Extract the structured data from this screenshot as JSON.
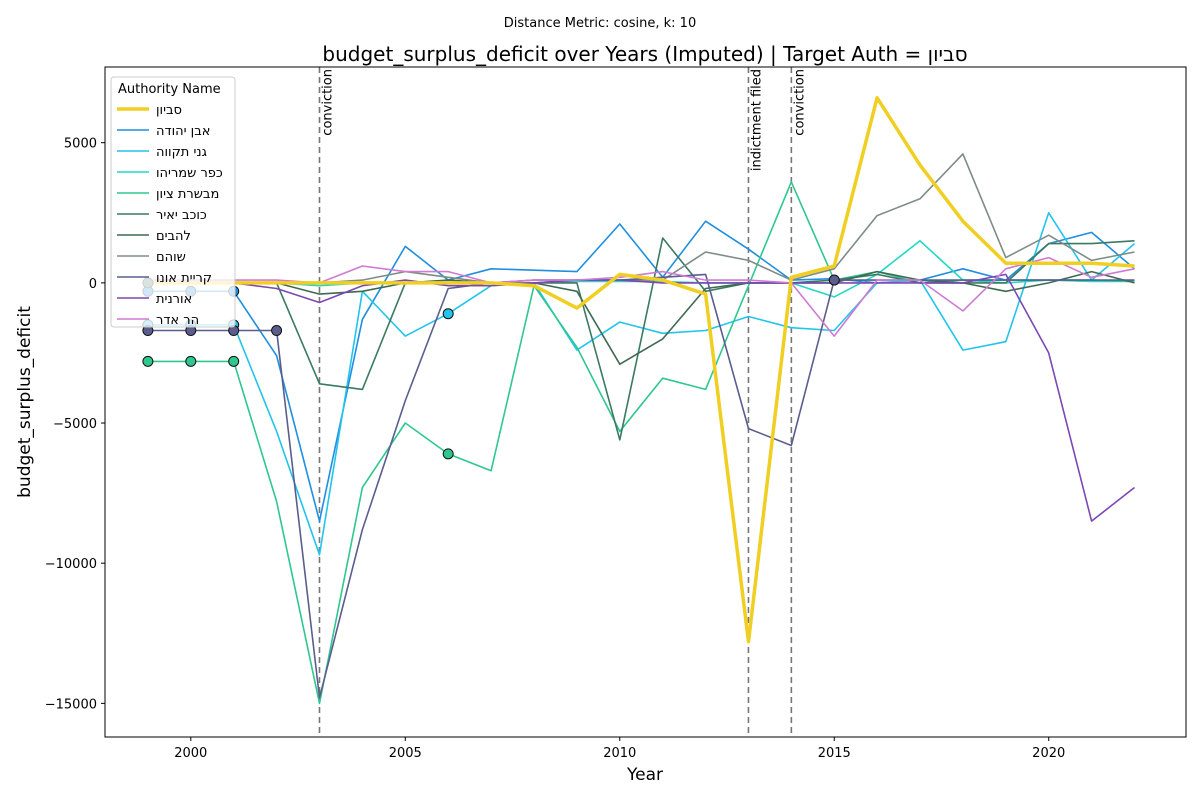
{
  "chart_data": {
    "type": "line",
    "suptitle": "Distance Metric: cosine, k: 10",
    "title": "budget_surplus_deficit over Years (Imputed) | Target Auth = סביון",
    "xlabel": "Year",
    "ylabel": "budget_surplus_deficit",
    "xlim": [
      1998,
      2023.2
    ],
    "ylim": [
      -16200,
      7700
    ],
    "xticks": [
      2000,
      2005,
      2010,
      2015,
      2020
    ],
    "xtick_labels": [
      "2000",
      "2005",
      "2010",
      "2015",
      "2020"
    ],
    "yticks": [
      -15000,
      -10000,
      -5000,
      0,
      5000
    ],
    "ytick_labels": [
      "−15000",
      "−10000",
      "−5000",
      "0",
      "5000"
    ],
    "grid": false,
    "legend": {
      "title": "Authority Name",
      "placement": "top-left"
    },
    "x": [
      1999,
      2000,
      2001,
      2002,
      2003,
      2004,
      2005,
      2006,
      2007,
      2008,
      2009,
      2010,
      2011,
      2012,
      2013,
      2014,
      2015,
      2016,
      2017,
      2018,
      2019,
      2020,
      2021,
      2022
    ],
    "events": [
      {
        "year": 2003,
        "label": "conviction"
      },
      {
        "year": 2013,
        "label": "indictment filed"
      },
      {
        "year": 2014,
        "label": "conviction"
      }
    ],
    "series": [
      {
        "name": "סביון",
        "color": "#f0cf22",
        "target": true,
        "values": [
          0,
          0,
          0,
          0,
          0,
          0,
          0,
          0,
          0,
          -100,
          -900,
          300,
          100,
          -400,
          -12800,
          200,
          600,
          6600,
          4200,
          2200,
          700,
          700,
          700,
          600
        ],
        "imputed_years": []
      },
      {
        "name": "אבן יהודה",
        "color": "#1f8ee0",
        "target": false,
        "values": [
          -300,
          -300,
          -300,
          -2600,
          -8500,
          -1300,
          1300,
          100,
          500,
          450,
          400,
          2100,
          200,
          2200,
          1200,
          100,
          150,
          0,
          100,
          500,
          100,
          1400,
          1800,
          500
        ],
        "imputed_years": [
          1999,
          2000,
          2001
        ]
      },
      {
        "name": "גני תקווה",
        "color": "#22c4ec",
        "target": false,
        "values": [
          -1500,
          -1500,
          -1500,
          -5300,
          -9700,
          -300,
          -1900,
          -1100,
          -100,
          0,
          -2400,
          -1400,
          -1800,
          -1700,
          -1200,
          -1600,
          -1700,
          0,
          100,
          -2400,
          -2100,
          2500,
          100,
          1400
        ],
        "imputed_years": [
          1999,
          2000,
          2001,
          2006
        ]
      },
      {
        "name": "כפר שמריהו",
        "color": "#22d8c4",
        "target": false,
        "values": [
          0,
          0,
          0,
          0,
          -100,
          0,
          0,
          0,
          0,
          0,
          50,
          50,
          50,
          0,
          0,
          0,
          -500,
          300,
          1500,
          100,
          0,
          100,
          50,
          50
        ],
        "imputed_years": []
      },
      {
        "name": "מבשרת ציון",
        "color": "#2ec88e",
        "target": false,
        "values": [
          -2800,
          -2800,
          -2800,
          -7800,
          -15000,
          -7300,
          -5000,
          -6100,
          -6700,
          -100,
          -2300,
          -5300,
          -3400,
          -3800,
          -100,
          3600,
          100,
          400,
          0,
          100,
          100,
          100,
          100,
          50
        ],
        "imputed_years": [
          1999,
          2000,
          2001,
          2006
        ]
      },
      {
        "name": "כוכב יאיר",
        "color": "#3a7a60",
        "target": false,
        "values": [
          0,
          0,
          0,
          0,
          -3600,
          -3800,
          0,
          0,
          0,
          0,
          0,
          -5600,
          1600,
          -300,
          0,
          0,
          100,
          300,
          0,
          0,
          0,
          1400,
          1400,
          1500
        ],
        "imputed_years": [
          1999
        ]
      },
      {
        "name": "להבים",
        "color": "#3f6a52",
        "target": false,
        "values": [
          0,
          0,
          0,
          0,
          -400,
          -300,
          0,
          100,
          0,
          0,
          -300,
          -2900,
          -2000,
          -200,
          0,
          0,
          0,
          400,
          100,
          0,
          -300,
          0,
          400,
          0
        ],
        "imputed_years": []
      },
      {
        "name": "שוהם",
        "color": "#7e8c88",
        "target": false,
        "values": [
          0,
          0,
          0,
          0,
          0,
          100,
          400,
          200,
          0,
          0,
          100,
          100,
          100,
          1100,
          800,
          100,
          500,
          2400,
          3000,
          4600,
          900,
          1700,
          800,
          1100
        ],
        "imputed_years": []
      },
      {
        "name": "קריית אונו",
        "color": "#5a5d8e",
        "target": false,
        "values": [
          -1700,
          -1700,
          -1700,
          -1700,
          -14800,
          -8800,
          -4200,
          -200,
          0,
          100,
          100,
          100,
          200,
          300,
          -5200,
          -5800,
          100,
          100,
          100,
          100,
          100,
          100,
          100,
          100
        ],
        "imputed_years": [
          1999,
          2000,
          2001,
          2002,
          2015
        ]
      },
      {
        "name": "אורנית",
        "color": "#7b48b4",
        "target": false,
        "values": [
          0,
          0,
          0,
          -200,
          -700,
          -100,
          100,
          -100,
          -100,
          0,
          100,
          100,
          0,
          0,
          0,
          0,
          0,
          0,
          0,
          0,
          300,
          -2500,
          -8500,
          -7300
        ],
        "imputed_years": []
      },
      {
        "name": "הר אדר",
        "color": "#d07ad4",
        "target": false,
        "values": [
          100,
          100,
          100,
          100,
          0,
          600,
          400,
          400,
          0,
          100,
          100,
          200,
          400,
          100,
          100,
          0,
          -1900,
          100,
          100,
          -1000,
          500,
          900,
          200,
          500
        ],
        "imputed_years": []
      }
    ]
  }
}
